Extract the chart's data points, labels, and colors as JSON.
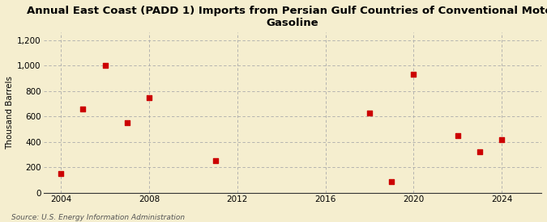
{
  "title_line1": "Annual East Coast (PADD 1) Imports from Persian Gulf Countries of Conventional Motor",
  "title_line2": "Gasoline",
  "ylabel": "Thousand Barrels",
  "source": "Source: U.S. Energy Information Administration",
  "background_color": "#f5eecf",
  "marker_color": "#cc0000",
  "x_data": [
    2004,
    2005,
    2006,
    2007,
    2008,
    2011,
    2018,
    2019,
    2020,
    2022,
    2023,
    2024
  ],
  "y_data": [
    150,
    660,
    1000,
    550,
    750,
    255,
    630,
    90,
    930,
    450,
    325,
    420
  ],
  "xlim": [
    2003.2,
    2025.8
  ],
  "ylim": [
    0,
    1260
  ],
  "yticks": [
    0,
    200,
    400,
    600,
    800,
    1000,
    1200
  ],
  "ytick_labels": [
    "0",
    "200",
    "400",
    "600",
    "800",
    "1,000",
    "1,200"
  ],
  "xticks": [
    2004,
    2008,
    2012,
    2016,
    2020,
    2024
  ],
  "grid_color": "#aaaaaa",
  "title_fontsize": 9.5,
  "axis_fontsize": 7.5,
  "source_fontsize": 6.5
}
